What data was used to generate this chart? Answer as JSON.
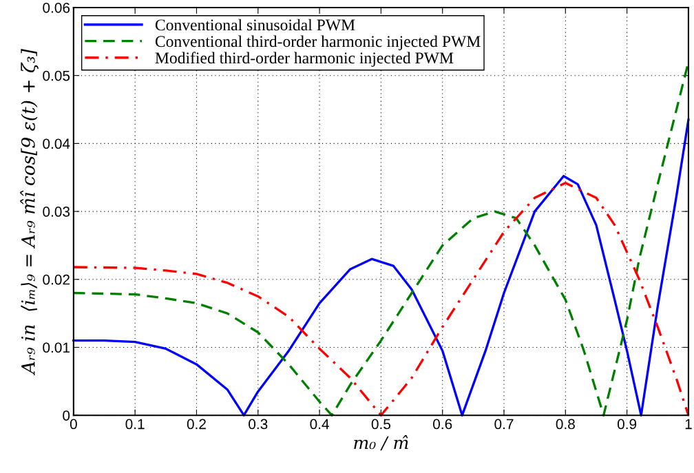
{
  "chart_data": {
    "type": "line",
    "xlabel": "m₀ / m̂",
    "ylabel": "Aᵣ₉ in  ⟨iₘ⟩₉ = Aᵣ₉ m̂î cos[9 ε(t) + ζ₃]",
    "xlim": [
      0,
      1
    ],
    "ylim": [
      0,
      0.06
    ],
    "xticks": [
      0,
      0.1,
      0.2,
      0.3,
      0.4,
      0.5,
      0.6,
      0.7,
      0.8,
      0.9,
      1
    ],
    "yticks": [
      0,
      0.01,
      0.02,
      0.03,
      0.04,
      0.05,
      0.06
    ],
    "grid": true,
    "legend": "top left",
    "marker": "none",
    "series": [
      {
        "name": "Conventional sinusoidal PWM",
        "color": "#0000ff",
        "line_style": "solid",
        "x": [
          0,
          0.05,
          0.1,
          0.15,
          0.2,
          0.25,
          0.277,
          0.3,
          0.35,
          0.4,
          0.45,
          0.485,
          0.52,
          0.55,
          0.6,
          0.632,
          0.67,
          0.7,
          0.75,
          0.797,
          0.82,
          0.85,
          0.88,
          0.9,
          0.923,
          0.95,
          0.98,
          1
        ],
        "values": [
          0.011,
          0.011,
          0.0108,
          0.0098,
          0.0075,
          0.0038,
          0,
          0.0035,
          0.0095,
          0.0165,
          0.0215,
          0.023,
          0.022,
          0.0185,
          0.0095,
          0,
          0.0095,
          0.018,
          0.03,
          0.0352,
          0.034,
          0.028,
          0.017,
          0.0095,
          0,
          0.016,
          0.032,
          0.0435
        ]
      },
      {
        "name": "Conventional third-order harmonic injected PWM",
        "color": "#008000",
        "line_style": "dashed",
        "x": [
          0,
          0.1,
          0.15,
          0.2,
          0.25,
          0.3,
          0.35,
          0.4,
          0.42,
          0.45,
          0.5,
          0.55,
          0.6,
          0.65,
          0.685,
          0.72,
          0.75,
          0.8,
          0.83,
          0.862,
          0.9,
          0.92,
          0.95,
          1
        ],
        "values": [
          0.018,
          0.0178,
          0.0172,
          0.0165,
          0.015,
          0.0122,
          0.0075,
          0.002,
          0,
          0.0045,
          0.011,
          0.018,
          0.025,
          0.029,
          0.03,
          0.029,
          0.025,
          0.017,
          0.0095,
          0,
          0.014,
          0.023,
          0.034,
          0.052
        ]
      },
      {
        "name": "Modified third-order harmonic injected PWM",
        "color": "#ff0000",
        "line_style": "dashdot",
        "x": [
          0,
          0.1,
          0.15,
          0.2,
          0.25,
          0.3,
          0.35,
          0.4,
          0.45,
          0.5,
          0.55,
          0.6,
          0.65,
          0.7,
          0.75,
          0.8,
          0.85,
          0.88,
          0.92,
          0.95,
          0.98,
          1
        ],
        "values": [
          0.0218,
          0.0217,
          0.0213,
          0.0208,
          0.0195,
          0.0175,
          0.0145,
          0.0098,
          0.0055,
          0,
          0.0055,
          0.013,
          0.02,
          0.027,
          0.032,
          0.0342,
          0.032,
          0.028,
          0.02,
          0.013,
          0.0055,
          0
        ]
      }
    ]
  }
}
